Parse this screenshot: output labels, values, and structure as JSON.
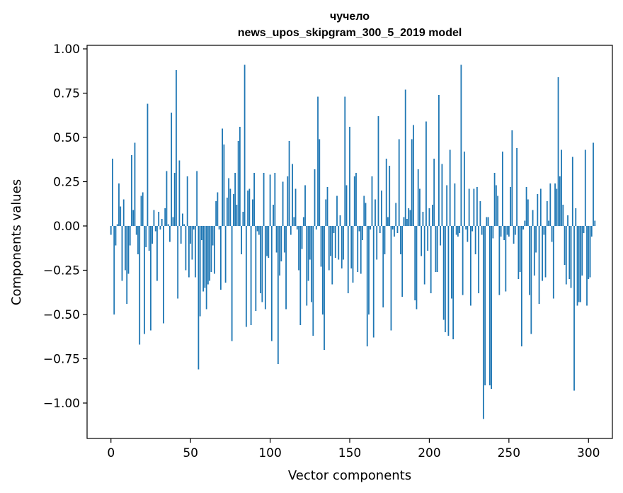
{
  "chart_data": {
    "type": "bar",
    "title_line1": "чучело",
    "title_line2": "news_upos_skipgram_300_5_2019 model",
    "xlabel": "Vector components",
    "ylabel": "Components values",
    "xlim": [
      -15,
      315
    ],
    "ylim": [
      -1.2,
      1.02
    ],
    "x_ticks": [
      0,
      50,
      100,
      150,
      200,
      250,
      300
    ],
    "y_ticks": [
      1.0,
      0.75,
      0.5,
      0.25,
      0.0,
      -0.25,
      -0.5,
      -0.75,
      -1.0
    ],
    "x_tick_labels": [
      "0",
      "50",
      "100",
      "150",
      "200",
      "250",
      "300"
    ],
    "y_tick_labels": [
      "1.00",
      "0.75",
      "0.50",
      "0.25",
      "0.00",
      "−0.25",
      "−0.50",
      "−0.75",
      "−1.00"
    ],
    "bar_color": "#1f77b4",
    "values": [
      -0.05,
      0.38,
      -0.5,
      -0.11,
      0.01,
      0.24,
      0.11,
      -0.31,
      0.15,
      -0.25,
      -0.44,
      -0.27,
      -0.11,
      0.4,
      0.09,
      0.47,
      -0.05,
      -0.16,
      -0.67,
      0.17,
      0.19,
      -0.61,
      -0.12,
      0.69,
      -0.14,
      -0.59,
      -0.1,
      0.09,
      -0.03,
      -0.31,
      0.08,
      -0.02,
      0.04,
      -0.55,
      0.1,
      0.31,
      0.01,
      -0.09,
      0.64,
      0.05,
      0.3,
      0.88,
      -0.41,
      0.37,
      -0.1,
      0.07,
      0.01,
      -0.25,
      0.28,
      -0.29,
      -0.1,
      -0.19,
      -0.02,
      -0.29,
      0.31,
      -0.81,
      -0.51,
      -0.08,
      -0.37,
      -0.35,
      -0.47,
      -0.33,
      -0.31,
      -0.26,
      -0.11,
      -0.27,
      0.14,
      0.19,
      -0.02,
      -0.36,
      0.55,
      0.46,
      -0.32,
      0.16,
      0.27,
      0.21,
      -0.65,
      0.18,
      0.3,
      0.12,
      0.48,
      0.56,
      -0.16,
      0.08,
      0.91,
      -0.57,
      0.2,
      0.21,
      -0.56,
      0.15,
      0.3,
      -0.48,
      -0.03,
      -0.05,
      -0.38,
      -0.43,
      0.3,
      -0.47,
      -0.17,
      -0.18,
      0.29,
      -0.65,
      0.12,
      0.3,
      -0.15,
      -0.78,
      -0.28,
      -0.2,
      0.25,
      -0.15,
      -0.47,
      0.28,
      0.48,
      -0.05,
      0.35,
      0.05,
      0.21,
      -0.02,
      -0.25,
      -0.56,
      -0.13,
      0.05,
      0.23,
      -0.45,
      -0.31,
      -0.19,
      -0.43,
      -0.62,
      0.32,
      -0.02,
      0.73,
      0.49,
      -0.23,
      -0.5,
      -0.7,
      0.15,
      0.22,
      -0.25,
      -0.17,
      -0.33,
      -0.04,
      -0.18,
      0.17,
      -0.19,
      0.06,
      -0.24,
      -0.19,
      0.73,
      0.23,
      -0.38,
      0.56,
      -0.24,
      -0.32,
      0.28,
      0.3,
      -0.26,
      -0.03,
      -0.27,
      -0.08,
      0.17,
      0.13,
      -0.68,
      -0.5,
      -0.02,
      0.28,
      -0.63,
      0.15,
      -0.19,
      0.62,
      -0.04,
      0.2,
      -0.46,
      -0.16,
      0.38,
      0.05,
      0.34,
      -0.59,
      -0.02,
      -0.06,
      0.13,
      -0.04,
      0.49,
      -0.16,
      -0.4,
      0.05,
      0.77,
      0.04,
      0.1,
      0.09,
      0.49,
      0.57,
      -0.42,
      -0.47,
      0.32,
      0.21,
      -0.17,
      0.08,
      -0.33,
      0.59,
      -0.14,
      0.1,
      -0.38,
      0.12,
      0.38,
      -0.26,
      -0.26,
      0.74,
      -0.11,
      0.35,
      -0.53,
      -0.6,
      0.23,
      -0.62,
      0.43,
      -0.41,
      -0.64,
      0.24,
      -0.05,
      -0.06,
      -0.04,
      0.91,
      -0.39,
      0.42,
      -0.02,
      -0.09,
      0.21,
      -0.45,
      -0.03,
      0.21,
      -0.16,
      0.22,
      -0.38,
      0.14,
      -0.05,
      -1.09,
      -0.9,
      0.05,
      0.05,
      -0.9,
      -0.92,
      -0.07,
      0.3,
      0.23,
      0.17,
      -0.39,
      -0.06,
      0.42,
      -0.08,
      -0.37,
      -0.05,
      -0.06,
      0.22,
      0.54,
      -0.1,
      -0.05,
      0.44,
      -0.3,
      -0.26,
      -0.68,
      -0.02,
      0.03,
      0.22,
      0.15,
      -0.39,
      -0.61,
      0.09,
      -0.28,
      -0.15,
      0.18,
      -0.44,
      0.21,
      -0.31,
      -0.05,
      -0.29,
      0.14,
      0.03,
      0.24,
      -0.09,
      -0.41,
      0.24,
      0.21,
      0.84,
      0.28,
      0.43,
      0.12,
      -0.22,
      -0.33,
      0.06,
      -0.3,
      -0.35,
      0.39,
      -0.93,
      0.1,
      -0.45,
      -0.43,
      -0.43,
      -0.28,
      -0.04,
      0.43,
      -0.45,
      -0.3,
      -0.29,
      -0.06,
      0.47,
      0.03
    ]
  }
}
